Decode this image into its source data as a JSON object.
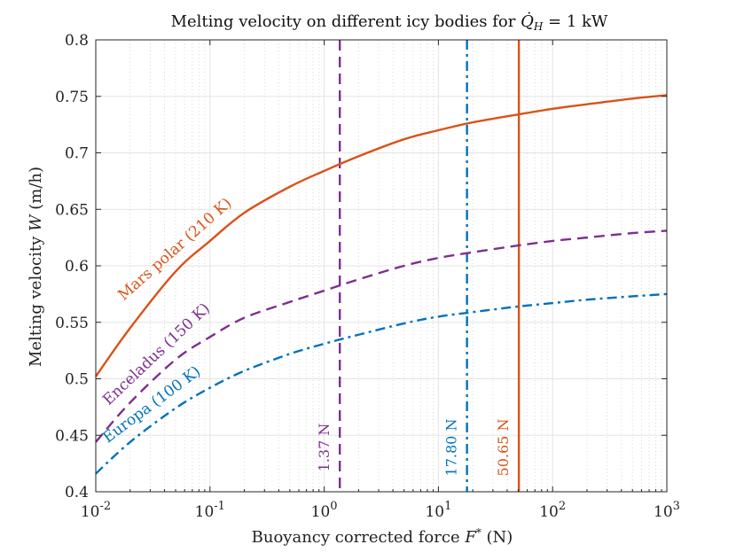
{
  "chart_data": {
    "type": "line",
    "title": "Melting velocity on different icy bodies for Q̇H = 1 kW",
    "title_parts": {
      "prefix": "Melting velocity on different icy bodies for ",
      "symbol": "Q̇",
      "subscript": "H",
      "suffix": " = 1 kW"
    },
    "xlabel": "Buoyancy corrected force F* (N)",
    "xlabel_parts": {
      "prefix": "Buoyancy corrected force ",
      "symbol": "F",
      "sup": "*",
      "suffix": " (N)"
    },
    "ylabel": "Melting velocity W (m/h)",
    "ylabel_parts": {
      "prefix": "Melting velocity ",
      "symbol": "W",
      "suffix": " (m/h)"
    },
    "xscale": "log",
    "xlim": [
      0.01,
      1000
    ],
    "ylim": [
      0.4,
      0.8
    ],
    "grid": true,
    "x_ticks": [
      {
        "value": 0.01,
        "base": "10",
        "exp": "-2"
      },
      {
        "value": 0.1,
        "base": "10",
        "exp": "-1"
      },
      {
        "value": 1,
        "base": "10",
        "exp": "0"
      },
      {
        "value": 10,
        "base": "10",
        "exp": "1"
      },
      {
        "value": 100,
        "base": "10",
        "exp": "2"
      },
      {
        "value": 1000,
        "base": "10",
        "exp": "3"
      }
    ],
    "y_ticks": [
      {
        "value": 0.4,
        "label": "0.4"
      },
      {
        "value": 0.45,
        "label": "0.45"
      },
      {
        "value": 0.5,
        "label": "0.5"
      },
      {
        "value": 0.55,
        "label": "0.55"
      },
      {
        "value": 0.6,
        "label": "0.6"
      },
      {
        "value": 0.65,
        "label": "0.65"
      },
      {
        "value": 0.7,
        "label": "0.7"
      },
      {
        "value": 0.75,
        "label": "0.75"
      },
      {
        "value": 0.8,
        "label": "0.8"
      }
    ],
    "series": [
      {
        "name": "Mars polar (210 K)",
        "label": "Mars polar (210 K)",
        "color": "#d95319",
        "dash": "solid",
        "x": [
          0.01,
          0.02,
          0.05,
          0.1,
          0.2,
          0.5,
          1,
          2,
          5,
          10,
          20,
          50,
          100,
          200,
          500,
          1000
        ],
        "y": [
          0.502,
          0.545,
          0.595,
          0.622,
          0.647,
          0.67,
          0.684,
          0.697,
          0.712,
          0.72,
          0.727,
          0.734,
          0.739,
          0.743,
          0.748,
          0.751
        ]
      },
      {
        "name": "Enceladus (150 K)",
        "label": "Enceladus (150 K)",
        "color": "#7e2f8e",
        "dash": "dashed",
        "x": [
          0.01,
          0.02,
          0.05,
          0.1,
          0.2,
          0.5,
          1,
          2,
          5,
          10,
          20,
          50,
          100,
          200,
          500,
          1000
        ],
        "y": [
          0.444,
          0.479,
          0.517,
          0.537,
          0.554,
          0.568,
          0.578,
          0.588,
          0.6,
          0.607,
          0.612,
          0.618,
          0.622,
          0.625,
          0.629,
          0.631
        ]
      },
      {
        "name": "Europa (100 K)",
        "label": "Europa (100 K)",
        "color": "#0072bd",
        "dash": "dashdot",
        "x": [
          0.01,
          0.02,
          0.05,
          0.1,
          0.2,
          0.5,
          1,
          2,
          5,
          10,
          20,
          50,
          100,
          200,
          500,
          1000
        ],
        "y": [
          0.416,
          0.444,
          0.474,
          0.492,
          0.507,
          0.522,
          0.531,
          0.539,
          0.549,
          0.555,
          0.559,
          0.564,
          0.567,
          0.57,
          0.573,
          0.575
        ]
      }
    ],
    "vlines": [
      {
        "x": 1.37,
        "label": "1.37 N",
        "color": "#7e2f8e",
        "dash": "dashed"
      },
      {
        "x": 17.8,
        "label": "17.80 N",
        "color": "#0072bd",
        "dash": "dashdot"
      },
      {
        "x": 50.65,
        "label": "50.65 N",
        "color": "#d95319",
        "dash": "solid"
      }
    ]
  }
}
